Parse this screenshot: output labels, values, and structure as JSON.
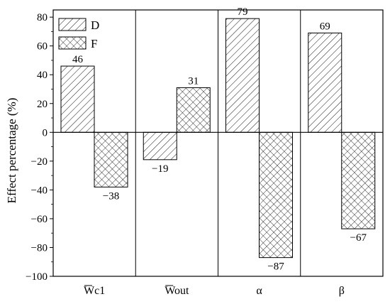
{
  "chart_data": {
    "type": "bar",
    "categories": [
      "Wc1",
      "Wout",
      "α",
      "β"
    ],
    "category_overbar": [
      true,
      true,
      false,
      false
    ],
    "series": [
      {
        "name": "D",
        "values": [
          46,
          -19,
          79,
          69
        ],
        "labels": [
          "46",
          "−19",
          "79",
          "69"
        ],
        "pattern": "diagonal-hatch"
      },
      {
        "name": "F",
        "values": [
          -38,
          31,
          -87,
          -67
        ],
        "labels": [
          "−38",
          "31",
          "−87",
          "−67"
        ],
        "pattern": "cross-hatch"
      }
    ],
    "ylabel": "Effect percentage (%)",
    "xlabel": "",
    "ylim": [
      -100,
      85
    ],
    "yticks": [
      -100,
      -80,
      -60,
      -40,
      -20,
      0,
      20,
      40,
      60,
      80
    ],
    "ytick_labels": [
      "−100",
      "−80",
      "−60",
      "−40",
      "−20",
      "0",
      "20",
      "40",
      "60",
      "80"
    ],
    "grid": false,
    "legend_position": "top-left",
    "colors": {
      "bar_fill": "#ffffff",
      "bar_stroke": "#000000",
      "hatch": "#000000"
    }
  }
}
